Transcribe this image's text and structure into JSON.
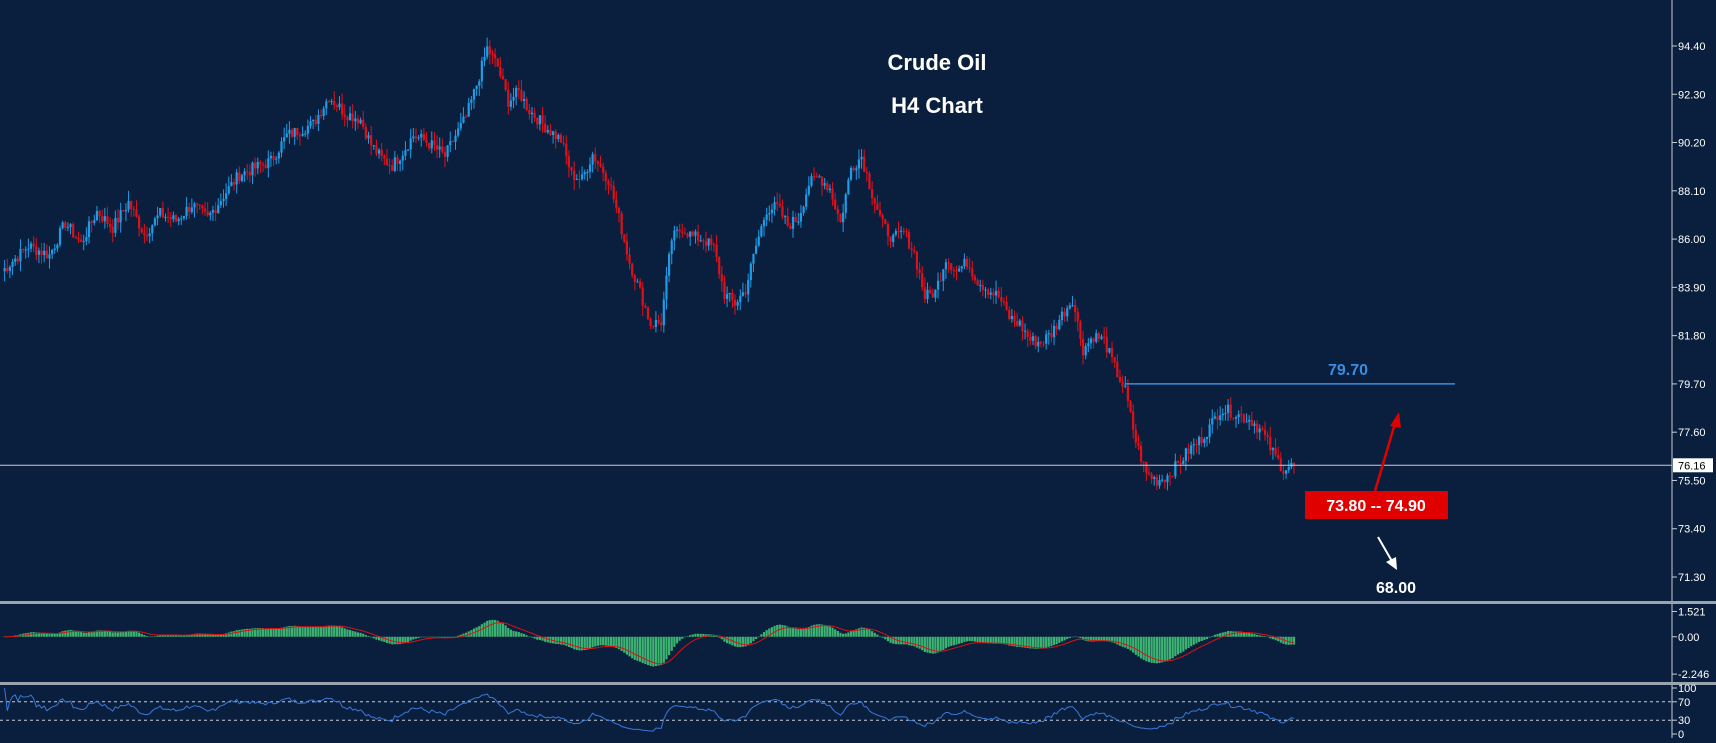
{
  "colors": {
    "background": "#0a1f3d",
    "bull_candle": "#1e9ce6",
    "bear_candle": "#e0101a",
    "macd_hist": "#3cb371",
    "macd_signal": "#e01010",
    "rsi_line": "#3a78d8",
    "resistance": "#3a8de0",
    "annotation_red": "#e00000",
    "text": "#ffffff"
  },
  "chart_data": [
    {
      "type": "candlestick",
      "title": "Crude Oil",
      "subtitle": "H4 Chart",
      "ylim": [
        70.3,
        96.4
      ],
      "y_ticks": [
        "94.40",
        "92.30",
        "90.20",
        "88.10",
        "86.00",
        "83.90",
        "81.80",
        "79.70",
        "77.60",
        "75.50",
        "73.40",
        "71.30"
      ],
      "current_price": "76.16",
      "current_price_value": 76.16,
      "close_path": [
        [
          0,
          84.6
        ],
        [
          10,
          85.7
        ],
        [
          18,
          85.3
        ],
        [
          24,
          86.7
        ],
        [
          30,
          85.8
        ],
        [
          36,
          87.2
        ],
        [
          42,
          86.5
        ],
        [
          48,
          87.6
        ],
        [
          54,
          86.2
        ],
        [
          60,
          87.1
        ],
        [
          66,
          86.8
        ],
        [
          72,
          87.5
        ],
        [
          78,
          86.9
        ],
        [
          84,
          87.9
        ],
        [
          90,
          88.8
        ],
        [
          96,
          89.1
        ],
        [
          102,
          89.4
        ],
        [
          108,
          90.5
        ],
        [
          114,
          90.8
        ],
        [
          118,
          91.0
        ],
        [
          124,
          92.2
        ],
        [
          130,
          91.5
        ],
        [
          136,
          91.2
        ],
        [
          140,
          90.1
        ],
        [
          144,
          89.5
        ],
        [
          148,
          89.2
        ],
        [
          152,
          89.8
        ],
        [
          156,
          90.5
        ],
        [
          160,
          90.3
        ],
        [
          164,
          90.0
        ],
        [
          168,
          89.6
        ],
        [
          172,
          90.5
        ],
        [
          176,
          91.3
        ],
        [
          180,
          92.7
        ],
        [
          184,
          94.3
        ],
        [
          188,
          93.5
        ],
        [
          192,
          92.0
        ],
        [
          196,
          92.4
        ],
        [
          200,
          91.6
        ],
        [
          206,
          90.9
        ],
        [
          212,
          90.3
        ],
        [
          216,
          88.8
        ],
        [
          220,
          88.6
        ],
        [
          224,
          89.7
        ],
        [
          230,
          88.6
        ],
        [
          234,
          86.9
        ],
        [
          238,
          85.0
        ],
        [
          242,
          83.7
        ],
        [
          246,
          82.3
        ],
        [
          250,
          82.4
        ],
        [
          254,
          86.0
        ],
        [
          258,
          86.5
        ],
        [
          262,
          86.1
        ],
        [
          266,
          86.0
        ],
        [
          270,
          85.6
        ],
        [
          274,
          83.6
        ],
        [
          278,
          83.2
        ],
        [
          282,
          83.8
        ],
        [
          286,
          85.7
        ],
        [
          290,
          87.3
        ],
        [
          294,
          87.4
        ],
        [
          298,
          86.6
        ],
        [
          302,
          86.9
        ],
        [
          306,
          88.4
        ],
        [
          310,
          88.7
        ],
        [
          314,
          88.2
        ],
        [
          318,
          86.7
        ],
        [
          322,
          89.1
        ],
        [
          326,
          89.6
        ],
        [
          330,
          88.0
        ],
        [
          334,
          86.6
        ],
        [
          338,
          86.0
        ],
        [
          342,
          86.3
        ],
        [
          346,
          85.4
        ],
        [
          350,
          83.5
        ],
        [
          354,
          83.7
        ],
        [
          358,
          85.2
        ],
        [
          362,
          84.6
        ],
        [
          366,
          85.0
        ],
        [
          370,
          84.2
        ],
        [
          374,
          83.8
        ],
        [
          378,
          83.5
        ],
        [
          382,
          82.6
        ],
        [
          386,
          82.3
        ],
        [
          390,
          81.6
        ],
        [
          394,
          81.5
        ],
        [
          398,
          81.9
        ],
        [
          402,
          82.7
        ],
        [
          406,
          83.4
        ],
        [
          410,
          81.2
        ],
        [
          414,
          81.8
        ],
        [
          418,
          81.6
        ],
        [
          422,
          80.4
        ],
        [
          426,
          79.4
        ],
        [
          430,
          77.2
        ],
        [
          434,
          75.8
        ],
        [
          438,
          75.5
        ],
        [
          442,
          75.7
        ],
        [
          446,
          76.2
        ],
        [
          450,
          76.8
        ],
        [
          454,
          77.2
        ],
        [
          458,
          77.8
        ],
        [
          462,
          78.6
        ],
        [
          466,
          78.5
        ],
        [
          470,
          78.3
        ],
        [
          474,
          78.1
        ],
        [
          478,
          77.6
        ],
        [
          482,
          76.7
        ],
        [
          486,
          76.0
        ],
        [
          490,
          76.16
        ]
      ]
    },
    {
      "type": "histogram",
      "name": "MACD",
      "y_ticks": [
        "1.521",
        "0.00",
        "-2.246"
      ],
      "ylim": [
        -2.6,
        1.85
      ]
    },
    {
      "type": "line",
      "name": "RSI",
      "y_ticks": [
        "100",
        "70",
        "30",
        "0"
      ],
      "ylim": [
        0,
        100
      ],
      "levels": [
        70,
        30
      ]
    }
  ],
  "annotations": {
    "resistance_label": "79.70",
    "resistance_value": 79.7,
    "target_zone": "73.80 -- 74.90",
    "target_down": "68.00"
  }
}
